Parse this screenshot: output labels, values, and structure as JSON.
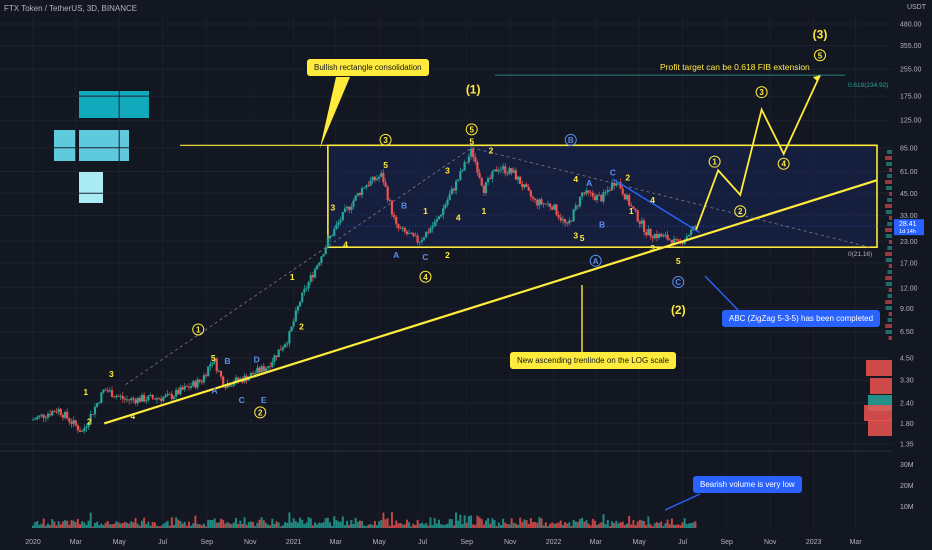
{
  "header": {
    "title": "FTX Token / TetherUS, 3D, BINANCE",
    "currency": "USDT"
  },
  "annotations": {
    "rectangle_note": "Bullish rectangle consolidation",
    "trendline_note": "New ascending trenlinde on the LOG scale",
    "abc_note": "ABC (ZigZag 5-3-5) has been completed",
    "volume_note": "Bearish volume is very low",
    "profit_target": "Profit target can be 0.618 FIB extension",
    "fib_618_label": "0.618(234.92)",
    "fib_0_label": "0(21.16)",
    "price_tag": "28.41",
    "price_tag_sub": "1d 14h"
  },
  "colors": {
    "background": "#131722",
    "up": "#26a69a",
    "down": "#ef5350",
    "yellow": "#ffeb3b",
    "blue": "#2962ff"
  },
  "chart_data": {
    "type": "candlestick",
    "title": "FTX Token / TetherUS, 3D, BINANCE",
    "y_scale": "log",
    "y_ticks": [
      "480.00",
      "355.00",
      "255.00",
      "175.00",
      "125.00",
      "85.00",
      "61.00",
      "45.00",
      "33.00",
      "23.00",
      "17.00",
      "12.00",
      "9.00",
      "6.50",
      "4.50",
      "3.30",
      "2.40",
      "1.80",
      "1.35"
    ],
    "volume_ticks": [
      "30M",
      "20M",
      "10M"
    ],
    "x_ticks": [
      "2020",
      "Mar",
      "May",
      "Jul",
      "Sep",
      "Nov",
      "2021",
      "Mar",
      "May",
      "Jul",
      "Sep",
      "Nov",
      "2022",
      "Mar",
      "May",
      "Jul",
      "Sep",
      "Nov",
      "2023",
      "Mar"
    ],
    "price_path": [
      {
        "date": "2020-01-01",
        "price": 1.9
      },
      {
        "date": "2020-02-05",
        "price": 2.2
      },
      {
        "date": "2020-03-10",
        "price": 1.6
      },
      {
        "date": "2020-04-10",
        "price": 2.9
      },
      {
        "date": "2020-05-10",
        "price": 2.5
      },
      {
        "date": "2020-07-10",
        "price": 2.6
      },
      {
        "date": "2020-08-25",
        "price": 3.3
      },
      {
        "date": "2020-09-10",
        "price": 4.5
      },
      {
        "date": "2020-09-25",
        "price": 3.1
      },
      {
        "date": "2020-10-25",
        "price": 3.4
      },
      {
        "date": "2020-11-25",
        "price": 4.0
      },
      {
        "date": "2020-12-25",
        "price": 6.0
      },
      {
        "date": "2021-01-10",
        "price": 10.0
      },
      {
        "date": "2021-02-20",
        "price": 24.0
      },
      {
        "date": "2021-03-15",
        "price": 35.0
      },
      {
        "date": "2021-04-10",
        "price": 50.0
      },
      {
        "date": "2021-05-05",
        "price": 58.0
      },
      {
        "date": "2021-05-25",
        "price": 28.0
      },
      {
        "date": "2021-06-25",
        "price": 23.0
      },
      {
        "date": "2021-07-20",
        "price": 30.0
      },
      {
        "date": "2021-08-20",
        "price": 55.0
      },
      {
        "date": "2021-09-08",
        "price": 82.0
      },
      {
        "date": "2021-09-25",
        "price": 48.0
      },
      {
        "date": "2021-10-15",
        "price": 65.0
      },
      {
        "date": "2021-11-05",
        "price": 60.0
      },
      {
        "date": "2021-12-05",
        "price": 40.0
      },
      {
        "date": "2021-12-30",
        "price": 38.0
      },
      {
        "date": "2022-01-20",
        "price": 28.0
      },
      {
        "date": "2022-02-10",
        "price": 45.0
      },
      {
        "date": "2022-03-10",
        "price": 42.0
      },
      {
        "date": "2022-03-30",
        "price": 55.0
      },
      {
        "date": "2022-04-20",
        "price": 37.0
      },
      {
        "date": "2022-05-12",
        "price": 26.0
      },
      {
        "date": "2022-06-10",
        "price": 24.0
      },
      {
        "date": "2022-06-25",
        "price": 22.0
      },
      {
        "date": "2022-07-20",
        "price": 28.41
      }
    ],
    "rectangle": {
      "top": 88.0,
      "bottom": 21.16,
      "start": "2021-02-18",
      "end": "2023-03-31"
    },
    "trendline": {
      "from": {
        "date": "2020-04-10",
        "price": 1.8
      },
      "to": {
        "date": "2023-03-31",
        "price": 54.0
      }
    },
    "projection": [
      {
        "date": "2022-07-20",
        "price": 27.0
      },
      {
        "date": "2022-08-20",
        "price": 62.0
      },
      {
        "date": "2022-09-20",
        "price": 44.0
      },
      {
        "date": "2022-10-20",
        "price": 145.0
      },
      {
        "date": "2022-11-20",
        "price": 78.0
      },
      {
        "date": "2023-01-10",
        "price": 234.92
      }
    ],
    "fib_extension": {
      "level": "0.618",
      "value": 234.92
    },
    "wave_labels": [
      {
        "t": "2",
        "date": "2020-03-20",
        "price": 1.85,
        "c": "yellow",
        "circle": false
      },
      {
        "t": "1",
        "date": "2020-03-15",
        "price": 2.8,
        "c": "yellow",
        "circle": false
      },
      {
        "t": "3",
        "date": "2020-04-20",
        "price": 3.6,
        "c": "yellow",
        "circle": false
      },
      {
        "t": "4",
        "date": "2020-05-20",
        "price": 2.0,
        "c": "yellow",
        "circle": false
      },
      {
        "t": "1",
        "date": "2020-08-20",
        "price": 6.7,
        "c": "yellow",
        "circle": true
      },
      {
        "t": "5",
        "date": "2020-09-10",
        "price": 4.5,
        "c": "yellow",
        "circle": false
      },
      {
        "t": "A",
        "date": "2020-09-12",
        "price": 2.85,
        "c": "blue",
        "circle": false
      },
      {
        "t": "B",
        "date": "2020-09-30",
        "price": 4.3,
        "c": "blue",
        "circle": false
      },
      {
        "t": "C",
        "date": "2020-10-20",
        "price": 2.5,
        "c": "blue",
        "circle": false
      },
      {
        "t": "D",
        "date": "2020-11-10",
        "price": 4.4,
        "c": "blue",
        "circle": false
      },
      {
        "t": "E",
        "date": "2020-11-20",
        "price": 2.5,
        "c": "blue",
        "circle": false
      },
      {
        "t": "2",
        "date": "2020-11-15",
        "price": 2.1,
        "c": "yellow",
        "circle": true
      },
      {
        "t": "1",
        "date": "2020-12-30",
        "price": 14.0,
        "c": "yellow",
        "circle": false
      },
      {
        "t": "2",
        "date": "2021-01-12",
        "price": 7.0,
        "c": "yellow",
        "circle": false
      },
      {
        "t": "3",
        "date": "2021-02-25",
        "price": 37.0,
        "c": "yellow",
        "circle": false
      },
      {
        "t": "4",
        "date": "2021-03-15",
        "price": 22.0,
        "c": "yellow",
        "circle": false
      },
      {
        "t": "3",
        "date": "2021-05-10",
        "price": 95.0,
        "c": "yellow",
        "circle": true
      },
      {
        "t": "5",
        "date": "2021-05-10",
        "price": 67.0,
        "c": "yellow",
        "circle": false
      },
      {
        "t": "B",
        "date": "2021-06-05",
        "price": 38.0,
        "c": "blue",
        "circle": false
      },
      {
        "t": "A",
        "date": "2021-05-25",
        "price": 19.0,
        "c": "blue",
        "circle": false
      },
      {
        "t": "C",
        "date": "2021-07-05",
        "price": 18.5,
        "c": "blue",
        "circle": false
      },
      {
        "t": "2",
        "date": "2021-08-05",
        "price": 19.0,
        "c": "yellow",
        "circle": false
      },
      {
        "t": "4",
        "date": "2021-07-05",
        "price": 14.0,
        "c": "yellow",
        "circle": true
      },
      {
        "t": "1",
        "date": "2021-07-05",
        "price": 35.0,
        "c": "yellow",
        "circle": false
      },
      {
        "t": "3",
        "date": "2021-08-05",
        "price": 62.0,
        "c": "yellow",
        "circle": false
      },
      {
        "t": "4",
        "date": "2021-08-20",
        "price": 32.0,
        "c": "yellow",
        "circle": false
      },
      {
        "t": "5",
        "date": "2021-09-08",
        "price": 110.0,
        "c": "yellow",
        "circle": true
      },
      {
        "t": "5",
        "date": "2021-09-08",
        "price": 93.0,
        "c": "yellow",
        "circle": false
      },
      {
        "t": "(1)",
        "date": "2021-09-10",
        "price": 190.0,
        "c": "yellow",
        "circle": false
      },
      {
        "t": "1",
        "date": "2021-09-25",
        "price": 35.0,
        "c": "yellow",
        "circle": false
      },
      {
        "t": "2",
        "date": "2021-10-05",
        "price": 82.0,
        "c": "yellow",
        "circle": false
      },
      {
        "t": "B",
        "date": "2022-01-25",
        "price": 95.0,
        "c": "blue",
        "circle": true
      },
      {
        "t": "4",
        "date": "2022-02-01",
        "price": 55.0,
        "c": "yellow",
        "circle": false
      },
      {
        "t": "A",
        "date": "2022-02-20",
        "price": 52.0,
        "c": "blue",
        "circle": false
      },
      {
        "t": "3",
        "date": "2022-02-01",
        "price": 25.0,
        "c": "yellow",
        "circle": false
      },
      {
        "t": "5",
        "date": "2022-02-10",
        "price": 24.0,
        "c": "yellow",
        "circle": false
      },
      {
        "t": "B",
        "date": "2022-03-10",
        "price": 29.0,
        "c": "blue",
        "circle": false
      },
      {
        "t": "C",
        "date": "2022-03-25",
        "price": 60.0,
        "c": "blue",
        "circle": false
      },
      {
        "t": "2",
        "date": "2022-04-15",
        "price": 56.0,
        "c": "yellow",
        "circle": false
      },
      {
        "t": "1",
        "date": "2022-04-20",
        "price": 35.0,
        "c": "yellow",
        "circle": false
      },
      {
        "t": "4",
        "date": "2022-05-20",
        "price": 41.0,
        "c": "yellow",
        "circle": false
      },
      {
        "t": "3",
        "date": "2022-05-20",
        "price": 21.0,
        "c": "yellow",
        "circle": false
      },
      {
        "t": "A",
        "date": "2022-03-01",
        "price": 17.5,
        "c": "blue",
        "circle": true
      },
      {
        "t": "5",
        "date": "2022-06-25",
        "price": 17.5,
        "c": "yellow",
        "circle": false
      },
      {
        "t": "C",
        "date": "2022-06-25",
        "price": 13.0,
        "c": "blue",
        "circle": true
      },
      {
        "t": "(2)",
        "date": "2022-06-25",
        "price": 8.7,
        "c": "yellow",
        "circle": false
      },
      {
        "t": "1",
        "date": "2022-08-15",
        "price": 70.0,
        "c": "yellow",
        "circle": true
      },
      {
        "t": "2",
        "date": "2022-09-20",
        "price": 35.0,
        "c": "yellow",
        "circle": true
      },
      {
        "t": "3",
        "date": "2022-10-20",
        "price": 185.0,
        "c": "yellow",
        "circle": true
      },
      {
        "t": "4",
        "date": "2022-11-20",
        "price": 68.0,
        "c": "yellow",
        "circle": true
      },
      {
        "t": "5",
        "date": "2023-01-10",
        "price": 310.0,
        "c": "yellow",
        "circle": true
      },
      {
        "t": "(3)",
        "date": "2023-01-10",
        "price": 410.0,
        "c": "yellow",
        "circle": false
      }
    ]
  }
}
